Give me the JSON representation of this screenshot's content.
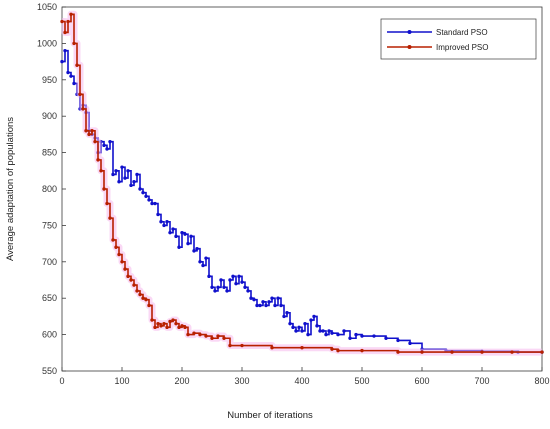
{
  "chart_data": {
    "type": "line",
    "title": "",
    "xlabel": "Number of iterations",
    "ylabel": "Average adaptation of populations",
    "xlim": [
      0,
      800
    ],
    "ylim": [
      550,
      1050
    ],
    "xticks": [
      0,
      100,
      200,
      300,
      400,
      500,
      600,
      700,
      800
    ],
    "yticks": [
      550,
      600,
      650,
      700,
      750,
      800,
      850,
      900,
      950,
      1000,
      1050
    ],
    "grid": false,
    "legend_position": "top-right",
    "series": [
      {
        "name": "Standard PSO",
        "color": "#1010cc",
        "marker": "dot",
        "points": [
          [
            0,
            975
          ],
          [
            5,
            990
          ],
          [
            10,
            960
          ],
          [
            15,
            955
          ],
          [
            20,
            945
          ],
          [
            25,
            930
          ],
          [
            30,
            910
          ],
          [
            35,
            915
          ],
          [
            40,
            905
          ],
          [
            45,
            880
          ],
          [
            50,
            875
          ],
          [
            55,
            870
          ],
          [
            60,
            850
          ],
          [
            65,
            865
          ],
          [
            70,
            860
          ],
          [
            75,
            855
          ],
          [
            80,
            865
          ],
          [
            85,
            820
          ],
          [
            90,
            825
          ],
          [
            95,
            810
          ],
          [
            100,
            830
          ],
          [
            105,
            815
          ],
          [
            110,
            825
          ],
          [
            115,
            805
          ],
          [
            120,
            810
          ],
          [
            125,
            820
          ],
          [
            130,
            800
          ],
          [
            135,
            795
          ],
          [
            140,
            790
          ],
          [
            145,
            785
          ],
          [
            150,
            780
          ],
          [
            155,
            780
          ],
          [
            160,
            765
          ],
          [
            165,
            755
          ],
          [
            170,
            750
          ],
          [
            175,
            755
          ],
          [
            180,
            740
          ],
          [
            185,
            745
          ],
          [
            190,
            735
          ],
          [
            195,
            720
          ],
          [
            200,
            740
          ],
          [
            205,
            738
          ],
          [
            210,
            725
          ],
          [
            215,
            735
          ],
          [
            220,
            715
          ],
          [
            225,
            718
          ],
          [
            230,
            700
          ],
          [
            235,
            695
          ],
          [
            240,
            705
          ],
          [
            245,
            680
          ],
          [
            250,
            665
          ],
          [
            255,
            660
          ],
          [
            260,
            665
          ],
          [
            265,
            675
          ],
          [
            270,
            665
          ],
          [
            275,
            660
          ],
          [
            280,
            675
          ],
          [
            285,
            680
          ],
          [
            290,
            670
          ],
          [
            295,
            680
          ],
          [
            300,
            672
          ],
          [
            305,
            665
          ],
          [
            310,
            660
          ],
          [
            315,
            650
          ],
          [
            320,
            648
          ],
          [
            325,
            640
          ],
          [
            330,
            640
          ],
          [
            335,
            645
          ],
          [
            340,
            640
          ],
          [
            345,
            645
          ],
          [
            350,
            650
          ],
          [
            355,
            640
          ],
          [
            360,
            650
          ],
          [
            365,
            640
          ],
          [
            370,
            625
          ],
          [
            375,
            630
          ],
          [
            380,
            615
          ],
          [
            385,
            610
          ],
          [
            390,
            605
          ],
          [
            395,
            610
          ],
          [
            400,
            605
          ],
          [
            405,
            615
          ],
          [
            410,
            600
          ],
          [
            415,
            620
          ],
          [
            420,
            625
          ],
          [
            425,
            612
          ],
          [
            430,
            605
          ],
          [
            435,
            605
          ],
          [
            440,
            600
          ],
          [
            445,
            605
          ],
          [
            450,
            602
          ],
          [
            460,
            600
          ],
          [
            470,
            605
          ],
          [
            480,
            595
          ],
          [
            490,
            600
          ],
          [
            500,
            598
          ],
          [
            520,
            598
          ],
          [
            540,
            595
          ],
          [
            560,
            592
          ],
          [
            580,
            588
          ],
          [
            600,
            580
          ],
          [
            640,
            578
          ],
          [
            700,
            577
          ],
          [
            760,
            576
          ],
          [
            800,
            576
          ]
        ]
      },
      {
        "name": "Improved PSO",
        "color": "#b82000",
        "marker": "dot",
        "points": [
          [
            0,
            1030
          ],
          [
            5,
            1015
          ],
          [
            10,
            1030
          ],
          [
            15,
            1040
          ],
          [
            20,
            1000
          ],
          [
            25,
            970
          ],
          [
            30,
            930
          ],
          [
            35,
            910
          ],
          [
            40,
            880
          ],
          [
            45,
            875
          ],
          [
            50,
            880
          ],
          [
            55,
            865
          ],
          [
            60,
            840
          ],
          [
            65,
            825
          ],
          [
            70,
            800
          ],
          [
            75,
            780
          ],
          [
            80,
            760
          ],
          [
            85,
            730
          ],
          [
            90,
            720
          ],
          [
            95,
            710
          ],
          [
            100,
            700
          ],
          [
            105,
            690
          ],
          [
            110,
            680
          ],
          [
            115,
            675
          ],
          [
            120,
            668
          ],
          [
            125,
            660
          ],
          [
            130,
            655
          ],
          [
            135,
            650
          ],
          [
            140,
            648
          ],
          [
            145,
            640
          ],
          [
            150,
            620
          ],
          [
            155,
            610
          ],
          [
            160,
            615
          ],
          [
            165,
            612
          ],
          [
            170,
            615
          ],
          [
            175,
            610
          ],
          [
            180,
            618
          ],
          [
            185,
            620
          ],
          [
            190,
            615
          ],
          [
            195,
            610
          ],
          [
            200,
            612
          ],
          [
            205,
            610
          ],
          [
            210,
            600
          ],
          [
            220,
            602
          ],
          [
            230,
            600
          ],
          [
            240,
            598
          ],
          [
            250,
            595
          ],
          [
            260,
            598
          ],
          [
            270,
            595
          ],
          [
            280,
            585
          ],
          [
            300,
            585
          ],
          [
            350,
            582
          ],
          [
            400,
            582
          ],
          [
            450,
            580
          ],
          [
            460,
            578
          ],
          [
            500,
            578
          ],
          [
            560,
            576
          ],
          [
            600,
            576
          ],
          [
            650,
            576
          ],
          [
            700,
            576
          ],
          [
            750,
            576
          ],
          [
            800,
            576
          ]
        ]
      }
    ]
  }
}
